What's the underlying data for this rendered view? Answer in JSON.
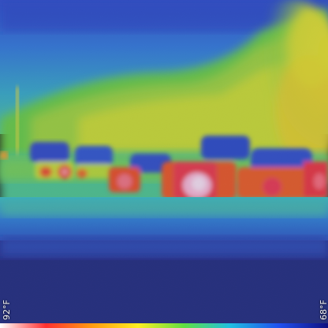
{
  "thermal_view": {
    "scale": {
      "left_label": "92°F",
      "right_label": "68°F"
    },
    "colors": {
      "cold": "#0a1a8a",
      "cool": "#1f5fe0",
      "mild": "#18b8c8",
      "warm": "#6ed82a",
      "warmer": "#e6e81e",
      "hot": "#f0401a",
      "hottest": "#ffd0ff"
    },
    "colorbar_stops": [
      "#ffffff",
      "#ff3030",
      "#ff9a10",
      "#ffee20",
      "#60e040",
      "#20c0e0",
      "#2050f0",
      "#101080"
    ]
  }
}
